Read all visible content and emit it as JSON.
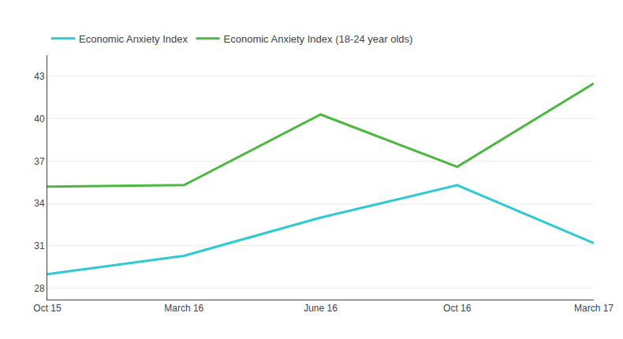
{
  "chart_data": {
    "type": "line",
    "categories": [
      "Oct 15",
      "March 16",
      "June 16",
      "Oct 16",
      "March 17"
    ],
    "series": [
      {
        "name": "Economic Anxiety Index",
        "color": "#2ECAD4",
        "values": [
          29.0,
          30.3,
          33.0,
          35.3,
          31.2
        ]
      },
      {
        "name": "Economic Anxiety Index (18-24 year olds)",
        "color": "#4DB840",
        "values": [
          35.2,
          35.3,
          40.3,
          36.6,
          42.5
        ]
      }
    ],
    "ylim": [
      27.2,
      44.5
    ],
    "yticks": [
      28,
      31,
      34,
      37,
      40,
      43
    ],
    "grid": true,
    "legend": "upper left"
  }
}
